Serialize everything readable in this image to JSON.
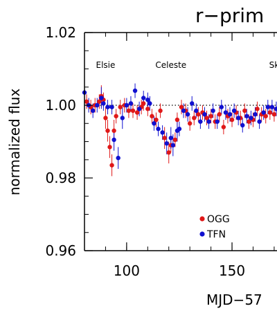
{
  "chart_data": {
    "type": "scatter",
    "title": "r−prim",
    "xlabel": "MJD−57",
    "ylabel": "normalized flux",
    "xlim": [
      80,
      172
    ],
    "ylim": [
      0.96,
      1.02
    ],
    "xticks": [
      100,
      150
    ],
    "xtick_labels": [
      "100",
      "150"
    ],
    "yticks": [
      0.96,
      0.98,
      1.0,
      1.02
    ],
    "ytick_labels": [
      "0.96",
      "0.98",
      "1.00",
      "1.02"
    ],
    "reference_line": 1.0,
    "annotations": [
      {
        "text": "Elsie",
        "x": 90
      },
      {
        "text": "Celeste",
        "x": 121
      },
      {
        "text": "Sk",
        "x": 170
      }
    ],
    "legend": {
      "placement": "bottom-center",
      "entries": [
        "OGG",
        "TFN"
      ]
    },
    "series": [
      {
        "name": "OGG",
        "color": "#e01818",
        "x": [
          81,
          83,
          85,
          87,
          88,
          89,
          90,
          91,
          92,
          93,
          94,
          95,
          97,
          99,
          101,
          103,
          105,
          107,
          108,
          110,
          112,
          114,
          116,
          118,
          120,
          121,
          123,
          124,
          126,
          128,
          130,
          132,
          134,
          136,
          138,
          140,
          142,
          144,
          146,
          148,
          150,
          152,
          154,
          156,
          158,
          160,
          162,
          164,
          166,
          168,
          170
        ],
        "y": [
          1.001,
          0.9995,
          1.0,
          1.001,
          1.0025,
          1.0015,
          0.9965,
          0.993,
          0.9885,
          0.9835,
          0.993,
          0.997,
          0.9995,
          1.0,
          0.9985,
          0.9985,
          0.998,
          0.9995,
          1.0005,
          0.999,
          0.997,
          0.996,
          0.9985,
          0.991,
          0.987,
          0.989,
          0.9905,
          0.996,
          0.9995,
          0.9985,
          0.995,
          0.9965,
          0.9975,
          0.998,
          0.9965,
          0.997,
          0.9955,
          0.9975,
          0.994,
          0.997,
          0.996,
          0.998,
          0.9965,
          0.9985,
          0.9955,
          0.996,
          0.999,
          0.9975,
          0.997,
          0.998,
          0.9975
        ],
        "err": [
          0.002,
          0.002,
          0.002,
          0.002,
          0.003,
          0.002,
          0.003,
          0.003,
          0.003,
          0.003,
          0.003,
          0.002,
          0.002,
          0.002,
          0.002,
          0.002,
          0.002,
          0.002,
          0.002,
          0.002,
          0.002,
          0.002,
          0.002,
          0.003,
          0.003,
          0.002,
          0.002,
          0.002,
          0.002,
          0.002,
          0.002,
          0.002,
          0.002,
          0.002,
          0.002,
          0.002,
          0.002,
          0.002,
          0.002,
          0.002,
          0.002,
          0.002,
          0.002,
          0.002,
          0.002,
          0.002,
          0.002,
          0.002,
          0.002,
          0.002,
          0.002
        ]
      },
      {
        "name": "TFN",
        "color": "#1010d0",
        "x": [
          80,
          82,
          84,
          86,
          88,
          89,
          91,
          93,
          94,
          96,
          98,
          100,
          102,
          104,
          106,
          108,
          110,
          111,
          113,
          115,
          117,
          119,
          121,
          122,
          124,
          125,
          127,
          129,
          131,
          133,
          135,
          137,
          139,
          141,
          143,
          145,
          147,
          149,
          151,
          153,
          155,
          157,
          159,
          161,
          163,
          165,
          167,
          169,
          171
        ],
        "y": [
          1.0035,
          1.0,
          0.9985,
          1.0,
          1.002,
          1.0005,
          0.9995,
          0.9995,
          0.9905,
          0.9855,
          0.9965,
          1.0,
          1.0005,
          1.004,
          0.999,
          1.002,
          1.0015,
          1.0005,
          0.995,
          0.9935,
          0.9925,
          0.9895,
          0.991,
          0.989,
          0.993,
          0.9935,
          0.9985,
          0.9975,
          1.0005,
          0.9985,
          0.9955,
          0.9975,
          0.9955,
          0.9985,
          0.9955,
          0.9995,
          0.998,
          0.9975,
          0.9985,
          0.9965,
          0.9945,
          0.997,
          0.9965,
          0.9975,
          0.9955,
          0.998,
          0.9995,
          0.9995,
          0.999
        ],
        "err": [
          0.002,
          0.002,
          0.002,
          0.002,
          0.003,
          0.002,
          0.002,
          0.002,
          0.003,
          0.003,
          0.003,
          0.002,
          0.002,
          0.002,
          0.002,
          0.002,
          0.002,
          0.002,
          0.002,
          0.002,
          0.002,
          0.003,
          0.003,
          0.003,
          0.003,
          0.002,
          0.002,
          0.002,
          0.002,
          0.002,
          0.002,
          0.002,
          0.002,
          0.002,
          0.002,
          0.002,
          0.002,
          0.002,
          0.002,
          0.002,
          0.002,
          0.002,
          0.002,
          0.002,
          0.002,
          0.002,
          0.002,
          0.002,
          0.002
        ]
      }
    ]
  }
}
